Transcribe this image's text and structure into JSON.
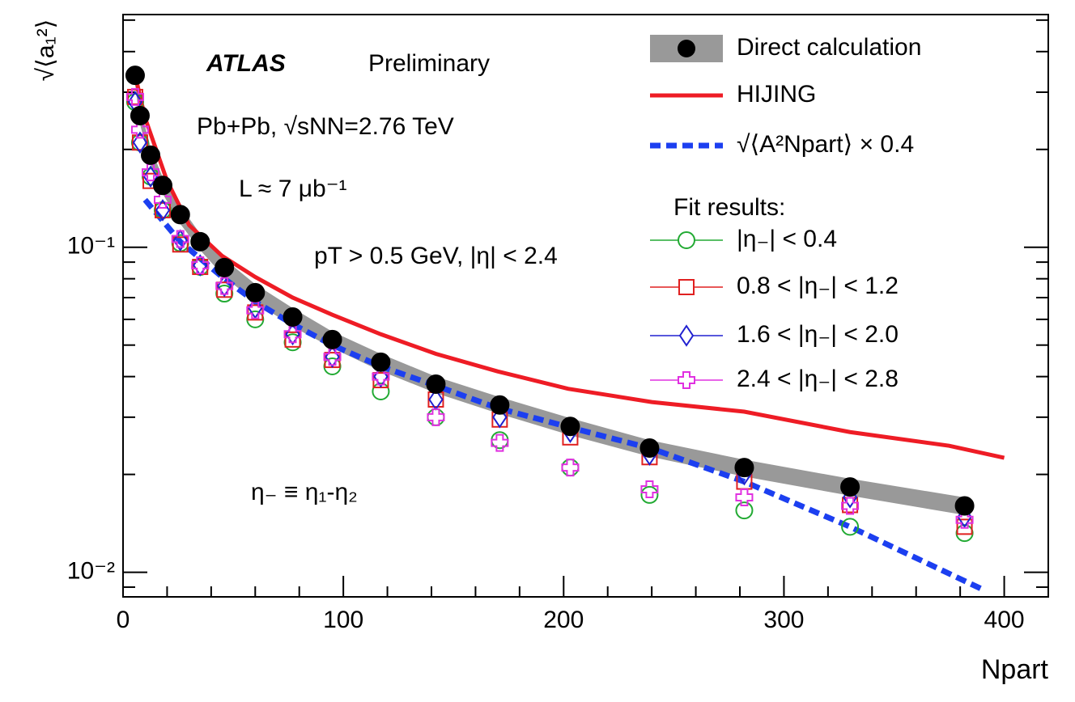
{
  "chart_data": {
    "type": "scatter",
    "y_label": "√⟨a₁²⟩",
    "x_label": "Npart",
    "ylog": true,
    "xlim": [
      0,
      420
    ],
    "ylim": [
      0.0084,
      0.52
    ],
    "xticks": [
      0,
      100,
      200,
      300,
      400
    ],
    "xminorticks": [
      20,
      40,
      60,
      80,
      120,
      140,
      160,
      180,
      220,
      240,
      260,
      280,
      320,
      340,
      360,
      380,
      420
    ],
    "yticks": [
      {
        "value": 0.01,
        "label": "10⁻²"
      },
      {
        "value": 0.1,
        "label": "10⁻¹"
      }
    ],
    "yminorticks": [
      0.009,
      0.02,
      0.03,
      0.04,
      0.05,
      0.06,
      0.07,
      0.08,
      0.09,
      0.2,
      0.3,
      0.4,
      0.5
    ],
    "annotations": [
      {
        "text": "ATLAS"
      },
      {
        "text": "Preliminary"
      },
      {
        "text": "Pb+Pb, √sNN=2.76 TeV"
      },
      {
        "text": "L ≈ 7 μb⁻¹"
      },
      {
        "text": "pT > 0.5 GeV, |η| < 2.4"
      },
      {
        "text": "η₋ ≡ η₁-η₂"
      }
    ],
    "legend_title": "Fit results:",
    "series": [
      {
        "name": "Direct calculation",
        "color": "#000000",
        "band_color": "#999999",
        "marker": "dot",
        "x": [
          5.5,
          7.7,
          12.5,
          18,
          26,
          35,
          46,
          60,
          77,
          95,
          117,
          142,
          171,
          203,
          239,
          282,
          330,
          382
        ],
        "values": [
          0.338,
          0.254,
          0.192,
          0.155,
          0.126,
          0.104,
          0.0866,
          0.0725,
          0.061,
          0.052,
          0.0443,
          0.0379,
          0.0327,
          0.0281,
          0.0241,
          0.021,
          0.0183,
          0.016
        ],
        "band_upper": [
          0.36,
          0.27,
          0.203,
          0.164,
          0.134,
          0.11,
          0.092,
          0.077,
          0.065,
          0.055,
          0.047,
          0.04,
          0.0346,
          0.0298,
          0.0255,
          0.0222,
          0.0194,
          0.017
        ],
        "band_lower": [
          0.318,
          0.239,
          0.18,
          0.146,
          0.118,
          0.098,
          0.081,
          0.068,
          0.057,
          0.049,
          0.0416,
          0.0356,
          0.0307,
          0.0264,
          0.0227,
          0.0197,
          0.0172,
          0.015
        ]
      },
      {
        "name": "HIJING",
        "color": "#ee1c25",
        "marker": "line",
        "x": [
          5,
          10,
          20,
          30,
          45,
          60,
          77,
          95,
          117,
          142,
          170,
          202,
          240,
          282,
          330,
          375,
          400
        ],
        "values": [
          0.35,
          0.25,
          0.16,
          0.117,
          0.094,
          0.081,
          0.07,
          0.062,
          0.054,
          0.047,
          0.0415,
          0.0367,
          0.0334,
          0.0312,
          0.027,
          0.0245,
          0.0225
        ]
      },
      {
        "name": "√⟨A²Npart⟩ × 0.4",
        "color": "#1c3ff0",
        "marker": "dashed",
        "x": [
          10,
          26,
          46,
          60,
          77,
          95,
          117,
          142,
          170,
          202,
          240,
          282,
          330,
          391
        ],
        "values": [
          0.14,
          0.104,
          0.08,
          0.068,
          0.058,
          0.05,
          0.043,
          0.0375,
          0.032,
          0.028,
          0.024,
          0.019,
          0.0138,
          0.0088
        ]
      },
      {
        "name": "|η₋| < 0.4",
        "color": "#22aa33",
        "marker": "circle",
        "x": [
          5.5,
          7.7,
          12.5,
          18,
          26,
          35,
          46,
          60,
          77,
          95,
          117,
          142,
          171,
          203,
          239,
          282,
          330,
          382
        ],
        "values": [
          0.28,
          0.21,
          0.165,
          0.13,
          0.103,
          0.087,
          0.072,
          0.06,
          0.051,
          0.043,
          0.036,
          0.03,
          0.0255,
          0.021,
          0.0173,
          0.0155,
          0.0138,
          0.0132
        ]
      },
      {
        "name": "0.8 < |η₋| < 1.2",
        "color": "#e02020",
        "marker": "square",
        "x": [
          5.5,
          7.7,
          12.5,
          18,
          26,
          35,
          46,
          60,
          77,
          95,
          117,
          142,
          171,
          203,
          239,
          282,
          330,
          382
        ],
        "values": [
          0.29,
          0.21,
          0.16,
          0.13,
          0.102,
          0.087,
          0.074,
          0.063,
          0.052,
          0.045,
          0.039,
          0.034,
          0.0295,
          0.026,
          0.0226,
          0.019,
          0.0161,
          0.0138
        ]
      },
      {
        "name": "1.6 < |η₋| < 2.0",
        "color": "#2020d0",
        "marker": "diamond",
        "x": [
          5.5,
          7.7,
          12.5,
          18,
          26,
          35,
          46,
          60,
          77,
          95,
          117,
          142,
          171,
          203,
          239,
          282,
          330,
          382
        ],
        "values": [
          0.28,
          0.21,
          0.165,
          0.13,
          0.105,
          0.088,
          0.076,
          0.065,
          0.054,
          0.046,
          0.04,
          0.034,
          0.03,
          0.027,
          0.023,
          0.02,
          0.017,
          0.0148
        ]
      },
      {
        "name": "2.4 < |η₋| < 2.8",
        "color": "#e030e0",
        "marker": "plus",
        "x": [
          5.5,
          7.7,
          12.5,
          18,
          26,
          35,
          46,
          60,
          77,
          95,
          117,
          142,
          171,
          203,
          239,
          282,
          330,
          382
        ],
        "values": [
          0.29,
          0.23,
          0.17,
          0.14,
          0.106,
          0.088,
          0.076,
          0.064,
          0.054,
          0.046,
          0.04,
          0.03,
          0.025,
          0.021,
          0.018,
          0.017,
          0.016,
          0.0145
        ]
      }
    ]
  }
}
